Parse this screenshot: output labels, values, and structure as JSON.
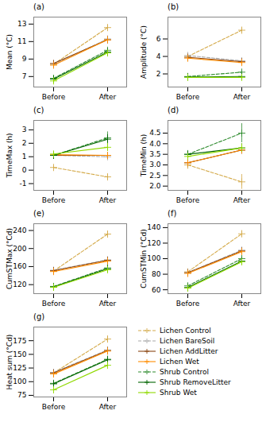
{
  "chart_data": [
    {
      "type": "line",
      "title": "(a)",
      "ylabel": "Mean (°C)",
      "categories": [
        "Before",
        "After"
      ],
      "ylim": [
        5.8,
        13.8
      ],
      "yticks": [
        7,
        9,
        11,
        13
      ],
      "grid": false,
      "series": [
        {
          "name": "Lichen Control",
          "color": "#D4AA4A",
          "marker": "plus",
          "line_style": "dashed",
          "values": [
            8.4,
            12.6
          ],
          "errors": [
            0.08,
            0.3
          ]
        },
        {
          "name": "Lichen BareSoil",
          "color": "#AAAAAA",
          "marker": "plus",
          "line_style": "dashed",
          "values": [
            8.4,
            11.3
          ],
          "errors": [
            0.1,
            0.12
          ]
        },
        {
          "name": "Lichen AddLitter",
          "color": "#8B4513",
          "marker": "plus",
          "line_style": "solid",
          "values": [
            8.5,
            11.2
          ],
          "errors": [
            0.1,
            0.12
          ]
        },
        {
          "name": "Lichen Wet",
          "color": "#FF8C00",
          "marker": "plus",
          "line_style": "solid",
          "values": [
            8.3,
            11.2
          ],
          "errors": [
            0.08,
            0.12
          ]
        },
        {
          "name": "Shrub Control",
          "color": "#2E8B2E",
          "marker": "plus",
          "line_style": "dashed",
          "values": [
            6.8,
            10.0
          ],
          "errors": [
            0.1,
            0.18
          ]
        },
        {
          "name": "Shrub RemoveLitter",
          "color": "#006400",
          "marker": "plus",
          "line_style": "solid",
          "values": [
            6.7,
            9.8
          ],
          "errors": [
            0.1,
            0.18
          ]
        },
        {
          "name": "Shrub Wet",
          "color": "#90D900",
          "marker": "plus",
          "line_style": "solid",
          "values": [
            6.5,
            9.7
          ],
          "errors": [
            0.08,
            0.18
          ]
        }
      ]
    },
    {
      "type": "line",
      "title": "(b)",
      "ylabel": "Amplitude (°C)",
      "categories": [
        "Before",
        "After"
      ],
      "ylim": [
        0.5,
        8.5
      ],
      "yticks": [
        2,
        4,
        6
      ],
      "grid": false,
      "series": [
        {
          "name": "Lichen Control",
          "color": "#D4AA4A",
          "marker": "plus",
          "line_style": "dashed",
          "values": [
            4.0,
            7.0
          ],
          "errors": [
            0.12,
            0.3
          ]
        },
        {
          "name": "Lichen BareSoil",
          "color": "#AAAAAA",
          "marker": "plus",
          "line_style": "dashed",
          "values": [
            4.1,
            3.5
          ],
          "errors": [
            0.1,
            0.18
          ]
        },
        {
          "name": "Lichen AddLitter",
          "color": "#8B4513",
          "marker": "plus",
          "line_style": "solid",
          "values": [
            3.9,
            3.4
          ],
          "errors": [
            0.1,
            0.15
          ]
        },
        {
          "name": "Lichen Wet",
          "color": "#FF8C00",
          "marker": "plus",
          "line_style": "solid",
          "values": [
            3.8,
            3.3
          ],
          "errors": [
            0.08,
            0.12
          ]
        },
        {
          "name": "Shrub Control",
          "color": "#2E8B2E",
          "marker": "plus",
          "line_style": "dashed",
          "values": [
            1.7,
            2.2
          ],
          "errors": [
            0.06,
            0.18
          ]
        },
        {
          "name": "Shrub RemoveLitter",
          "color": "#006400",
          "marker": "plus",
          "line_style": "solid",
          "values": [
            1.65,
            1.7
          ],
          "errors": [
            0.05,
            0.1
          ]
        },
        {
          "name": "Shrub Wet",
          "color": "#90D900",
          "marker": "plus",
          "line_style": "solid",
          "values": [
            1.6,
            1.6
          ],
          "errors": [
            0.05,
            0.08
          ]
        }
      ]
    },
    {
      "type": "line",
      "title": "(c)",
      "ylabel": "TimeMax (h)",
      "categories": [
        "Before",
        "After"
      ],
      "ylim": [
        -1.5,
        3.7
      ],
      "yticks": [
        -1,
        0,
        1,
        2,
        3
      ],
      "grid": false,
      "series": [
        {
          "name": "Lichen Control",
          "color": "#D4AA4A",
          "marker": "plus",
          "line_style": "dashed",
          "values": [
            0.2,
            -0.5
          ],
          "errors": [
            0.1,
            0.2
          ]
        },
        {
          "name": "Lichen BareSoil",
          "color": "#AAAAAA",
          "marker": "plus",
          "line_style": "dashed",
          "values": [
            1.1,
            1.0
          ],
          "errors": [
            0.1,
            0.18
          ]
        },
        {
          "name": "Lichen AddLitter",
          "color": "#8B4513",
          "marker": "plus",
          "line_style": "solid",
          "values": [
            1.1,
            1.1
          ],
          "errors": [
            0.1,
            0.15
          ]
        },
        {
          "name": "Lichen Wet",
          "color": "#FF8C00",
          "marker": "plus",
          "line_style": "solid",
          "values": [
            1.15,
            1.1
          ],
          "errors": [
            0.1,
            0.15
          ]
        },
        {
          "name": "Shrub Control",
          "color": "#2E8B2E",
          "marker": "plus",
          "line_style": "dashed",
          "values": [
            1.1,
            2.4
          ],
          "errors": [
            0.15,
            0.45
          ]
        },
        {
          "name": "Shrub RemoveLitter",
          "color": "#006400",
          "marker": "plus",
          "line_style": "solid",
          "values": [
            1.1,
            2.3
          ],
          "errors": [
            0.12,
            0.35
          ]
        },
        {
          "name": "Shrub Wet",
          "color": "#90D900",
          "marker": "plus",
          "line_style": "solid",
          "values": [
            1.2,
            1.7
          ],
          "errors": [
            0.12,
            0.3
          ]
        }
      ]
    },
    {
      "type": "line",
      "title": "(d)",
      "ylabel": "TimeMin (h)",
      "categories": [
        "Before",
        "After"
      ],
      "ylim": [
        1.8,
        5.1
      ],
      "yticks": [
        {
          "value": 2.0,
          "label": "2.0"
        },
        2.5,
        {
          "value": 3.0,
          "label": "3.0"
        },
        3.5,
        {
          "value": 4.0,
          "label": "4.0"
        },
        4.5
      ],
      "grid": false,
      "series": [
        {
          "name": "Lichen Control",
          "color": "#D4AA4A",
          "marker": "plus",
          "line_style": "dashed",
          "values": [
            3.0,
            2.2
          ],
          "errors": [
            0.2,
            0.35
          ]
        },
        {
          "name": "Lichen BareSoil",
          "color": "#AAAAAA",
          "marker": "plus",
          "line_style": "dashed",
          "values": [
            3.1,
            3.7
          ],
          "errors": [
            0.1,
            0.15
          ]
        },
        {
          "name": "Lichen AddLitter",
          "color": "#8B4513",
          "marker": "plus",
          "line_style": "solid",
          "values": [
            3.1,
            3.7
          ],
          "errors": [
            0.1,
            0.12
          ]
        },
        {
          "name": "Lichen Wet",
          "color": "#FF8C00",
          "marker": "plus",
          "line_style": "solid",
          "values": [
            3.1,
            3.7
          ],
          "errors": [
            0.1,
            0.12
          ]
        },
        {
          "name": "Shrub Control",
          "color": "#2E8B2E",
          "marker": "plus",
          "line_style": "dashed",
          "values": [
            3.5,
            4.5
          ],
          "errors": [
            0.18,
            0.45
          ]
        },
        {
          "name": "Shrub RemoveLitter",
          "color": "#006400",
          "marker": "plus",
          "line_style": "solid",
          "values": [
            3.5,
            3.8
          ],
          "errors": [
            0.1,
            0.2
          ]
        },
        {
          "name": "Shrub Wet",
          "color": "#90D900",
          "marker": "plus",
          "line_style": "solid",
          "values": [
            3.4,
            3.8
          ],
          "errors": [
            0.1,
            0.2
          ]
        }
      ]
    },
    {
      "type": "line",
      "title": "(e)",
      "ylabel": "CumSTMax (°Cd)",
      "categories": [
        "Before",
        "After"
      ],
      "ylim": [
        100,
        255
      ],
      "yticks": [
        120,
        160,
        200,
        240
      ],
      "grid": false,
      "series": [
        {
          "name": "Lichen Control",
          "color": "#D4AA4A",
          "marker": "plus",
          "line_style": "dashed",
          "values": [
            150,
            232
          ],
          "errors": [
            2.5,
            6
          ]
        },
        {
          "name": "Lichen BareSoil",
          "color": "#AAAAAA",
          "marker": "plus",
          "line_style": "dashed",
          "values": [
            152,
            175
          ],
          "errors": [
            2,
            3.5
          ]
        },
        {
          "name": "Lichen AddLitter",
          "color": "#8B4513",
          "marker": "plus",
          "line_style": "solid",
          "values": [
            151,
            174
          ],
          "errors": [
            2,
            3
          ]
        },
        {
          "name": "Lichen Wet",
          "color": "#FF8C00",
          "marker": "plus",
          "line_style": "solid",
          "values": [
            149,
            172
          ],
          "errors": [
            2,
            3
          ]
        },
        {
          "name": "Shrub Control",
          "color": "#2E8B2E",
          "marker": "plus",
          "line_style": "dashed",
          "values": [
            116,
            157
          ],
          "errors": [
            2,
            3.5
          ]
        },
        {
          "name": "Shrub RemoveLitter",
          "color": "#006400",
          "marker": "plus",
          "line_style": "solid",
          "values": [
            115,
            155
          ],
          "errors": [
            2,
            3
          ]
        },
        {
          "name": "Shrub Wet",
          "color": "#90D900",
          "marker": "plus",
          "line_style": "solid",
          "values": [
            114,
            153
          ],
          "errors": [
            2,
            3
          ]
        }
      ]
    },
    {
      "type": "line",
      "title": "(f)",
      "ylabel": "CumSTMin (°Cd)",
      "categories": [
        "Before",
        "After"
      ],
      "ylim": [
        55,
        145
      ],
      "yticks": [
        60,
        80,
        100,
        120,
        140
      ],
      "grid": false,
      "series": [
        {
          "name": "Lichen Control",
          "color": "#D4AA4A",
          "marker": "plus",
          "line_style": "dashed",
          "values": [
            83,
            132
          ],
          "errors": [
            2,
            4
          ]
        },
        {
          "name": "Lichen BareSoil",
          "color": "#AAAAAA",
          "marker": "plus",
          "line_style": "dashed",
          "values": [
            82,
            111
          ],
          "errors": [
            1.5,
            3
          ]
        },
        {
          "name": "Lichen AddLitter",
          "color": "#8B4513",
          "marker": "plus",
          "line_style": "solid",
          "values": [
            82,
            110
          ],
          "errors": [
            1.5,
            2.5
          ]
        },
        {
          "name": "Lichen Wet",
          "color": "#FF8C00",
          "marker": "plus",
          "line_style": "solid",
          "values": [
            81,
            109
          ],
          "errors": [
            1.5,
            2.5
          ]
        },
        {
          "name": "Shrub Control",
          "color": "#2E8B2E",
          "marker": "plus",
          "line_style": "dashed",
          "values": [
            65,
            100
          ],
          "errors": [
            1.5,
            3
          ]
        },
        {
          "name": "Shrub RemoveLitter",
          "color": "#006400",
          "marker": "plus",
          "line_style": "solid",
          "values": [
            63,
            97
          ],
          "errors": [
            1.5,
            2.5
          ]
        },
        {
          "name": "Shrub Wet",
          "color": "#90D900",
          "marker": "plus",
          "line_style": "solid",
          "values": [
            62,
            96
          ],
          "errors": [
            1.5,
            2.5
          ]
        }
      ]
    },
    {
      "type": "line",
      "title": "(g)",
      "ylabel": "Heat sum (°Cd)",
      "categories": [
        "Before",
        "After"
      ],
      "ylim": [
        72,
        200
      ],
      "yticks": [
        75,
        100,
        125,
        150,
        175
      ],
      "grid": false,
      "legend": "right",
      "series": [
        {
          "name": "Lichen Control",
          "color": "#D4AA4A",
          "marker": "plus",
          "line_style": "dashed",
          "values": [
            116,
            178
          ],
          "errors": [
            2.5,
            5
          ]
        },
        {
          "name": "Lichen BareSoil",
          "color": "#AAAAAA",
          "marker": "plus",
          "line_style": "dashed",
          "values": [
            117,
            158
          ],
          "errors": [
            2,
            3
          ]
        },
        {
          "name": "Lichen AddLitter",
          "color": "#8B4513",
          "marker": "plus",
          "line_style": "solid",
          "values": [
            116,
            157
          ],
          "errors": [
            2,
            3
          ]
        },
        {
          "name": "Lichen Wet",
          "color": "#FF8C00",
          "marker": "plus",
          "line_style": "solid",
          "values": [
            114,
            156
          ],
          "errors": [
            2,
            3
          ]
        },
        {
          "name": "Shrub Control",
          "color": "#2E8B2E",
          "marker": "plus",
          "line_style": "dashed",
          "values": [
            97,
            141
          ],
          "errors": [
            2,
            3.5
          ]
        },
        {
          "name": "Shrub RemoveLitter",
          "color": "#006400",
          "marker": "plus",
          "line_style": "solid",
          "values": [
            96,
            140
          ],
          "errors": [
            2,
            3
          ]
        },
        {
          "name": "Shrub Wet",
          "color": "#90D900",
          "marker": "plus",
          "line_style": "solid",
          "values": [
            85,
            130
          ],
          "errors": [
            2,
            3
          ]
        }
      ]
    }
  ]
}
